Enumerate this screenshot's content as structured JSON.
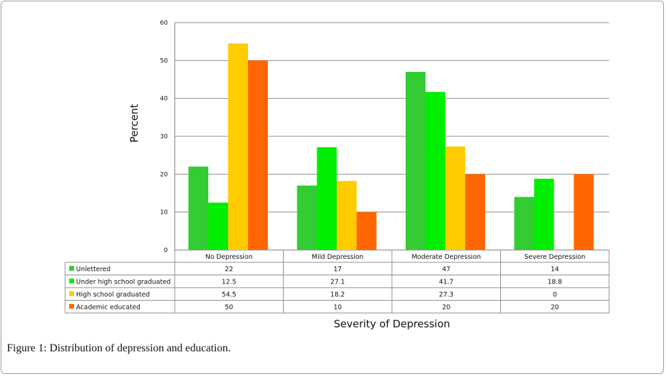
{
  "chart_data": {
    "type": "bar",
    "title": "",
    "xlabel": "Severity of Depression",
    "ylabel": "Percent",
    "ylim": [
      0,
      60
    ],
    "yticks": [
      0,
      10,
      20,
      30,
      40,
      50,
      60
    ],
    "grid": true,
    "legend": "table-left",
    "categories": [
      "No Depression",
      "Mild Depression",
      "Moderate Depression",
      "Severe Depression"
    ],
    "series": [
      {
        "name": "Unlettered",
        "color": "#33cc33",
        "values": [
          22,
          17,
          47,
          14
        ],
        "labels": [
          "22",
          "17",
          "47",
          "14"
        ]
      },
      {
        "name": "Under high school graduated",
        "color": "#00ee00",
        "values": [
          12.5,
          27.1,
          41.7,
          18.8
        ],
        "labels": [
          "12.5",
          "27.1",
          "41.7",
          "18.8"
        ]
      },
      {
        "name": "High school graduated",
        "color": "#ffcc00",
        "values": [
          54.5,
          18.2,
          27.3,
          0
        ],
        "labels": [
          "54.5",
          "18.2",
          "27.3",
          "0"
        ]
      },
      {
        "name": "Academic educated",
        "color": "#ff6600",
        "values": [
          50,
          10,
          20,
          20
        ],
        "labels": [
          "50",
          "10",
          "20",
          "20"
        ]
      }
    ]
  },
  "caption": {
    "label": "Figure 1:",
    "text": "Distribution of depression and education."
  }
}
